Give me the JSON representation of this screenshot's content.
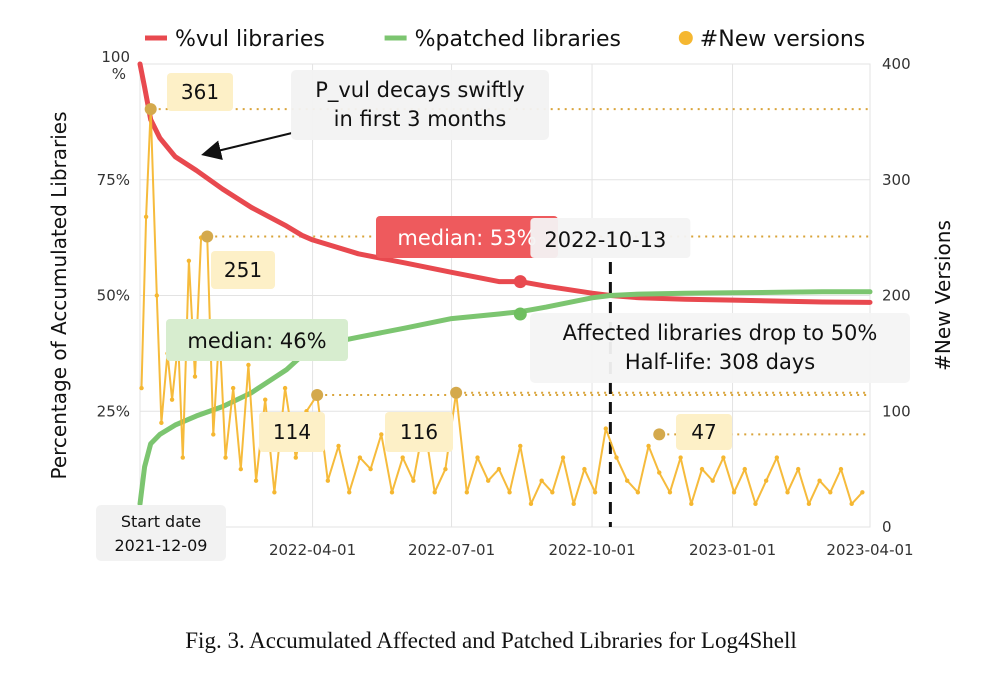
{
  "caption": "Fig. 3.  Accumulated Affected and Patched Libraries for Log4Shell",
  "chart_data": {
    "type": "line",
    "title": "",
    "legend": {
      "placement": "top",
      "entries": [
        {
          "label": "%vul libraries",
          "color": "#e8494f",
          "marker": "line"
        },
        {
          "label": "%patched libraries",
          "color": "#7cc570",
          "marker": "line"
        },
        {
          "label": "#New versions",
          "color": "#f5b731",
          "marker": "dot"
        }
      ]
    },
    "y_left": {
      "label": "Percentage of Accumulated Libraries",
      "range": [
        0,
        100
      ],
      "ticks": [
        "100\n%",
        "75%",
        "50%",
        "25%"
      ],
      "tick_values": [
        100,
        75,
        50,
        25
      ]
    },
    "y_right": {
      "label": "#New Versions",
      "range": [
        0,
        400
      ],
      "ticks": [
        "400",
        "300",
        "200",
        "100",
        "0"
      ],
      "tick_values": [
        400,
        300,
        200,
        100,
        0
      ]
    },
    "x": {
      "range": [
        "2021-12-09",
        "2023-04-01"
      ],
      "ticks": [
        "2022-04-01",
        "2022-07-01",
        "2022-10-01",
        "2023-01-01",
        "2023-04-01"
      ]
    },
    "grid": true,
    "series": [
      {
        "name": "%vul libraries",
        "axis": "left",
        "color": "#e8494f",
        "x": [
          "2021-12-09",
          "2021-12-12",
          "2021-12-16",
          "2021-12-22",
          "2022-01-01",
          "2022-01-15",
          "2022-02-01",
          "2022-02-20",
          "2022-03-15",
          "2022-03-25",
          "2022-04-01",
          "2022-05-01",
          "2022-06-01",
          "2022-07-01",
          "2022-08-01",
          "2022-08-15",
          "2022-09-01",
          "2022-10-01",
          "2022-10-13",
          "2022-11-01",
          "2022-12-01",
          "2023-01-01",
          "2023-02-01",
          "2023-03-01",
          "2023-04-01"
        ],
        "y": [
          100,
          95,
          88,
          84,
          80,
          77,
          73,
          69,
          65,
          63,
          62,
          59,
          57,
          55,
          53,
          53,
          52,
          50.5,
          50,
          49.5,
          49.2,
          49,
          48.8,
          48.6,
          48.5
        ]
      },
      {
        "name": "%patched libraries",
        "axis": "left",
        "color": "#7cc570",
        "x": [
          "2021-12-09",
          "2021-12-12",
          "2021-12-16",
          "2021-12-22",
          "2022-01-01",
          "2022-01-15",
          "2022-02-01",
          "2022-02-20",
          "2022-03-15",
          "2022-03-25",
          "2022-04-01",
          "2022-05-01",
          "2022-06-01",
          "2022-07-01",
          "2022-08-01",
          "2022-08-15",
          "2022-09-01",
          "2022-10-01",
          "2022-10-13",
          "2022-11-01",
          "2022-12-01",
          "2023-01-01",
          "2023-02-01",
          "2023-03-01",
          "2023-04-01"
        ],
        "y": [
          5,
          13,
          18,
          20,
          22,
          24,
          26,
          29,
          34,
          37,
          39,
          41,
          43,
          45,
          46,
          46.5,
          47.5,
          49.5,
          50,
          50.3,
          50.5,
          50.6,
          50.7,
          50.8,
          50.8
        ]
      },
      {
        "name": "#New versions",
        "axis": "right",
        "color": "#f5b731",
        "x": [
          "2021-12-10",
          "2021-12-13",
          "2021-12-16",
          "2021-12-20",
          "2021-12-23",
          "2021-12-27",
          "2021-12-30",
          "2022-01-03",
          "2022-01-06",
          "2022-01-10",
          "2022-01-14",
          "2022-01-18",
          "2022-01-22",
          "2022-01-26",
          "2022-01-30",
          "2022-02-03",
          "2022-02-08",
          "2022-02-13",
          "2022-02-18",
          "2022-02-23",
          "2022-03-01",
          "2022-03-07",
          "2022-03-14",
          "2022-03-21",
          "2022-03-28",
          "2022-04-04",
          "2022-04-11",
          "2022-04-18",
          "2022-04-25",
          "2022-05-02",
          "2022-05-09",
          "2022-05-16",
          "2022-05-23",
          "2022-05-30",
          "2022-06-06",
          "2022-06-13",
          "2022-06-20",
          "2022-06-27",
          "2022-07-04",
          "2022-07-11",
          "2022-07-18",
          "2022-07-25",
          "2022-08-01",
          "2022-08-08",
          "2022-08-15",
          "2022-08-22",
          "2022-08-29",
          "2022-09-05",
          "2022-09-12",
          "2022-09-19",
          "2022-09-26",
          "2022-10-03",
          "2022-10-10",
          "2022-10-17",
          "2022-10-24",
          "2022-10-31",
          "2022-11-07",
          "2022-11-14",
          "2022-11-21",
          "2022-11-28",
          "2022-12-05",
          "2022-12-12",
          "2022-12-19",
          "2022-12-26",
          "2023-01-02",
          "2023-01-09",
          "2023-01-16",
          "2023-01-23",
          "2023-01-30",
          "2023-02-06",
          "2023-02-13",
          "2023-02-20",
          "2023-02-27",
          "2023-03-06",
          "2023-03-13",
          "2023-03-20",
          "2023-03-27"
        ],
        "y": [
          120,
          268,
          361,
          200,
          90,
          150,
          110,
          160,
          60,
          230,
          130,
          250,
          251,
          80,
          170,
          60,
          120,
          50,
          140,
          40,
          110,
          30,
          120,
          60,
          100,
          114,
          40,
          70,
          30,
          60,
          50,
          80,
          30,
          60,
          40,
          90,
          30,
          50,
          116,
          30,
          60,
          40,
          50,
          30,
          70,
          20,
          40,
          30,
          60,
          20,
          50,
          30,
          85,
          60,
          40,
          30,
          70,
          47,
          30,
          60,
          20,
          50,
          40,
          60,
          30,
          50,
          20,
          40,
          60,
          30,
          50,
          20,
          40,
          30,
          50,
          20,
          30
        ]
      }
    ],
    "annotations": [
      {
        "text": "P_vul decays swiftly\nin first 3 months",
        "kind": "callout"
      },
      {
        "text": "median: 53%",
        "series": "%vul libraries",
        "x": "2022-08-15",
        "y": 53
      },
      {
        "text": "median: 46%",
        "series": "%patched libraries",
        "x": "2022-08-15",
        "y": 46
      },
      {
        "text": "2022-10-13",
        "kind": "vertical-line",
        "x": "2022-10-13"
      },
      {
        "text": "Affected libraries drop to 50%\nHalf-life: 308 days",
        "kind": "callout"
      },
      {
        "text": "Start date\n2021-12-09",
        "kind": "callout"
      },
      {
        "text": "361",
        "series": "#New versions",
        "x": "2021-12-16",
        "y": 361
      },
      {
        "text": "251",
        "series": "#New versions",
        "x": "2022-01-22",
        "y": 251
      },
      {
        "text": "114",
        "series": "#New versions",
        "x": "2022-04-04",
        "y": 114
      },
      {
        "text": "116",
        "series": "#New versions",
        "x": "2022-07-04",
        "y": 116
      },
      {
        "text": "47",
        "series": "#New versions",
        "x": "2022-11-14",
        "y": 80
      }
    ]
  }
}
